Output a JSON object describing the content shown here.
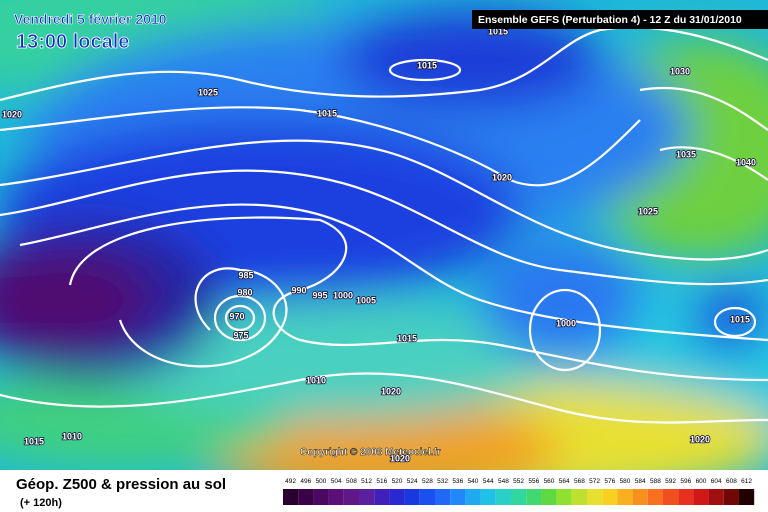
{
  "header": {
    "date": "Vendredi 5 février 2010",
    "time": "13:00 locale",
    "model": "Ensemble GEFS (Perturbation 4)  - 12 Z du 31/01/2010"
  },
  "isobar_labels": [
    1015,
    1015,
    1025,
    1020,
    1015,
    1030,
    1035,
    1040,
    1020,
    1025,
    985,
    980,
    970,
    975,
    990,
    995,
    1000,
    1005,
    1015,
    1000,
    1015,
    1010,
    1020,
    1015,
    1010,
    1020,
    1020
  ],
  "copyright": "Copyright © 2008 Meteociel.fr",
  "footer": {
    "title": "Géop. Z500 & pression au sol",
    "subtitle": "(+ 120h)"
  },
  "legend": [
    492,
    496,
    500,
    504,
    508,
    512,
    516,
    520,
    524,
    528,
    532,
    536,
    540,
    544,
    548,
    552,
    556,
    560,
    564,
    568,
    572,
    576,
    580,
    584,
    588,
    592,
    596,
    600,
    604,
    608,
    612
  ]
}
